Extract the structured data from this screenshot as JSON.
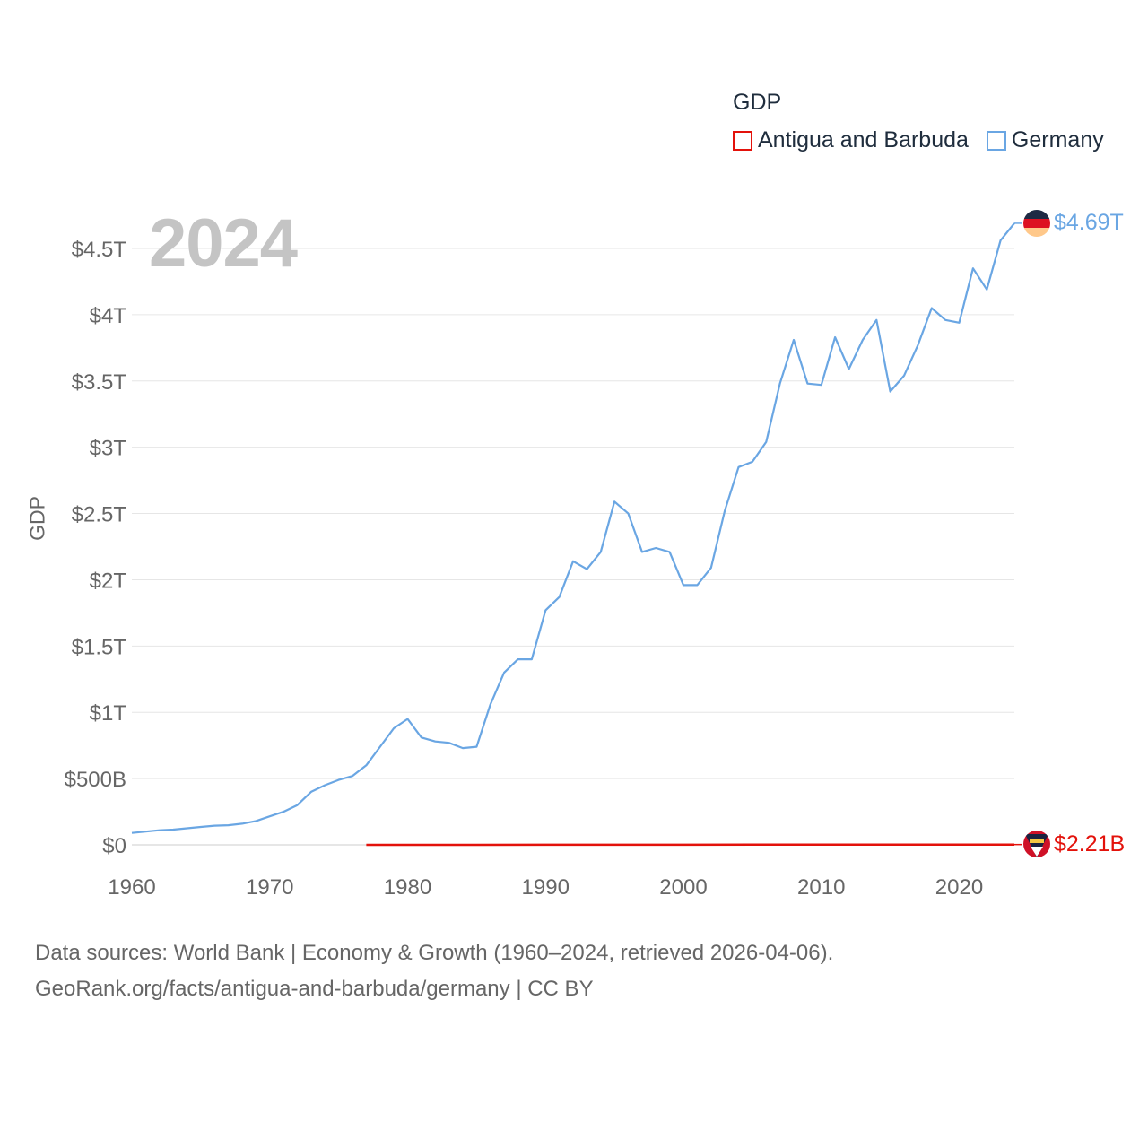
{
  "legend": {
    "title": "GDP",
    "items": [
      {
        "label": "Antigua and Barbuda",
        "color": "#e3120b"
      },
      {
        "label": "Germany",
        "color": "#6aa6e3"
      }
    ]
  },
  "year_label": "2024",
  "footer": {
    "line1": "Data sources: World Bank | Economy & Growth (1960–2024, retrieved 2026-04-06).",
    "line2": "GeoRank.org/facts/antigua-and-barbuda/germany | CC BY"
  },
  "chart_data": {
    "type": "line",
    "title": "GDP",
    "xlabel": "",
    "ylabel": "GDP",
    "xlim": [
      1960,
      2024
    ],
    "ylim": [
      0,
      4.5
    ],
    "grid": true,
    "legend_position": "top-right",
    "x_ticks": [
      1960,
      1970,
      1980,
      1990,
      2000,
      2010,
      2020
    ],
    "x_tick_labels": [
      "1960",
      "1970",
      "1980",
      "1990",
      "2000",
      "2010",
      "2020"
    ],
    "y_ticks": [
      0,
      0.5,
      1,
      1.5,
      2,
      2.5,
      3,
      3.5,
      4,
      4.5
    ],
    "y_tick_labels": [
      "$0",
      "$500B",
      "$1T",
      "$1.5T",
      "$2T",
      "$2.5T",
      "$3T",
      "$3.5T",
      "$4T",
      "$4.5T"
    ],
    "units": "trillion USD",
    "series": [
      {
        "name": "Germany",
        "color": "#6aa6e3",
        "end_label": "$4.69T",
        "icon": "germany-flag-icon",
        "x": [
          1960,
          1961,
          1962,
          1963,
          1964,
          1965,
          1966,
          1967,
          1968,
          1969,
          1970,
          1971,
          1972,
          1973,
          1974,
          1975,
          1976,
          1977,
          1978,
          1979,
          1980,
          1981,
          1982,
          1983,
          1984,
          1985,
          1986,
          1987,
          1988,
          1989,
          1990,
          1991,
          1992,
          1993,
          1994,
          1995,
          1996,
          1997,
          1998,
          1999,
          2000,
          2001,
          2002,
          2003,
          2004,
          2005,
          2006,
          2007,
          2008,
          2009,
          2010,
          2011,
          2012,
          2013,
          2014,
          2015,
          2016,
          2017,
          2018,
          2019,
          2020,
          2021,
          2022,
          2023,
          2024
        ],
        "values": [
          0.09,
          0.1,
          0.11,
          0.115,
          0.125,
          0.135,
          0.145,
          0.148,
          0.16,
          0.18,
          0.215,
          0.25,
          0.3,
          0.4,
          0.45,
          0.49,
          0.52,
          0.6,
          0.74,
          0.88,
          0.95,
          0.81,
          0.78,
          0.77,
          0.73,
          0.74,
          1.06,
          1.3,
          1.4,
          1.4,
          1.77,
          1.87,
          2.14,
          2.08,
          2.21,
          2.59,
          2.5,
          2.21,
          2.24,
          2.21,
          1.96,
          1.96,
          2.09,
          2.52,
          2.85,
          2.89,
          3.04,
          3.48,
          3.81,
          3.48,
          3.47,
          3.83,
          3.59,
          3.81,
          3.96,
          3.42,
          3.54,
          3.77,
          4.05,
          3.96,
          3.94,
          4.35,
          4.19,
          4.56,
          4.69
        ]
      },
      {
        "name": "Antigua and Barbuda",
        "color": "#e3120b",
        "end_label": "$2.21B",
        "icon": "antigua-flag-icon",
        "x": [
          1977,
          1980,
          1985,
          1990,
          1995,
          2000,
          2005,
          2008,
          2010,
          2015,
          2020,
          2024
        ],
        "values": [
          8e-05,
          0.00013,
          0.00029,
          0.00046,
          0.00057,
          0.00083,
          0.00106,
          0.00135,
          0.00115,
          0.00134,
          0.00141,
          0.00221
        ]
      }
    ]
  }
}
